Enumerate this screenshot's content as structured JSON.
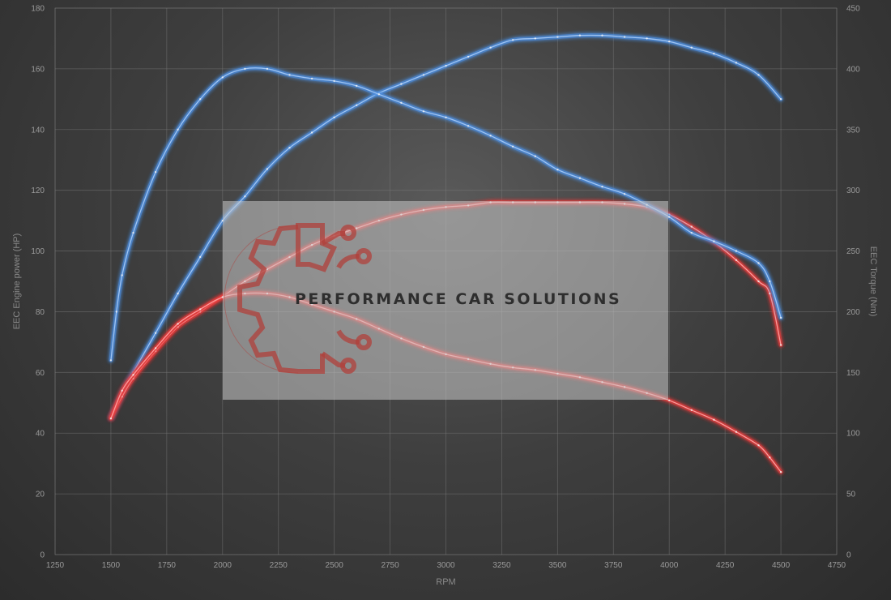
{
  "chart_data": {
    "type": "line",
    "xlabel": "RPM",
    "ylabel": "EEC Engine power (HP)",
    "y2label": "EEC Torque (Nm)",
    "xlim": [
      1250,
      4750
    ],
    "ylim": [
      0,
      180
    ],
    "y2lim": [
      0,
      450
    ],
    "x_ticks": [
      1250,
      1500,
      1750,
      2000,
      2250,
      2500,
      2750,
      3000,
      3250,
      3500,
      3750,
      4000,
      4250,
      4500,
      4750
    ],
    "y_ticks": [
      0,
      20,
      40,
      60,
      80,
      100,
      120,
      140,
      160,
      180
    ],
    "y2_ticks": [
      0,
      50,
      100,
      150,
      200,
      250,
      300,
      350,
      400,
      450
    ],
    "grid": true,
    "series": [
      {
        "axis": "left",
        "color": "#4d8ee0",
        "x": [
          1500,
          1550,
          1600,
          1700,
          1800,
          1900,
          2000,
          2100,
          2200,
          2300,
          2400,
          2500,
          2600,
          2700,
          2800,
          2900,
          3000,
          3100,
          3200,
          3300,
          3400,
          3500,
          3600,
          3700,
          3800,
          3900,
          4000,
          4100,
          4200,
          4300,
          4400,
          4500
        ],
        "values": [
          45,
          53,
          60,
          73,
          86,
          98,
          110,
          118,
          127,
          134,
          139,
          144,
          148,
          152,
          155,
          158,
          161,
          164,
          167,
          169.5,
          170,
          170.5,
          171,
          171,
          170.5,
          170,
          169,
          167,
          165,
          162,
          158,
          150
        ]
      },
      {
        "axis": "left",
        "color": "#e33a3a",
        "x": [
          1500,
          1550,
          1600,
          1700,
          1800,
          1900,
          2000,
          2100,
          2200,
          2300,
          2400,
          2500,
          2600,
          2700,
          2800,
          2900,
          3000,
          3100,
          3200,
          3300,
          3400,
          3500,
          3600,
          3700,
          3800,
          3900,
          4000,
          4100,
          4200,
          4300,
          4400,
          4450,
          4500
        ],
        "values": [
          45,
          52,
          58,
          67,
          75,
          80,
          85,
          90,
          94,
          98,
          102,
          105,
          107.5,
          110,
          112,
          113.5,
          114.5,
          115,
          116,
          116,
          116,
          116,
          116,
          116,
          115.5,
          114.5,
          112,
          108,
          103,
          97,
          90,
          86,
          69
        ]
      },
      {
        "axis": "right",
        "color": "#4d8ee0",
        "x": [
          1500,
          1525,
          1550,
          1600,
          1700,
          1800,
          1900,
          2000,
          2100,
          2200,
          2300,
          2400,
          2500,
          2600,
          2700,
          2800,
          2900,
          3000,
          3100,
          3200,
          3300,
          3400,
          3500,
          3600,
          3700,
          3800,
          3900,
          4000,
          4100,
          4200,
          4300,
          4400,
          4450,
          4500
        ],
        "values": [
          160,
          200,
          230,
          265,
          315,
          350,
          375,
          393,
          400,
          400,
          395,
          392,
          390,
          386,
          379,
          372,
          365,
          360,
          353,
          345,
          336,
          328,
          317,
          310,
          303,
          297,
          288,
          278,
          265,
          258,
          250,
          240,
          225,
          195
        ]
      },
      {
        "axis": "right",
        "color": "#e33a3a",
        "x": [
          1500,
          1550,
          1600,
          1700,
          1800,
          1900,
          2000,
          2100,
          2200,
          2300,
          2400,
          2500,
          2600,
          2700,
          2800,
          2900,
          3000,
          3100,
          3200,
          3300,
          3400,
          3500,
          3600,
          3700,
          3800,
          3900,
          4000,
          4100,
          4200,
          4300,
          4400,
          4450,
          4500
        ],
        "values": [
          112,
          135,
          148,
          170,
          190,
          202,
          212,
          215,
          215,
          212,
          206,
          200,
          194,
          186,
          178,
          171,
          165,
          161,
          157,
          154,
          152,
          149,
          146,
          142,
          138,
          133,
          127,
          119,
          111,
          101,
          90,
          80,
          68
        ]
      }
    ]
  },
  "watermark": {
    "text": "PERFORMANCE CAR SOLUTIONS",
    "logo_icon": "gear-circuit-icon",
    "logo_color": "#b0403b"
  }
}
